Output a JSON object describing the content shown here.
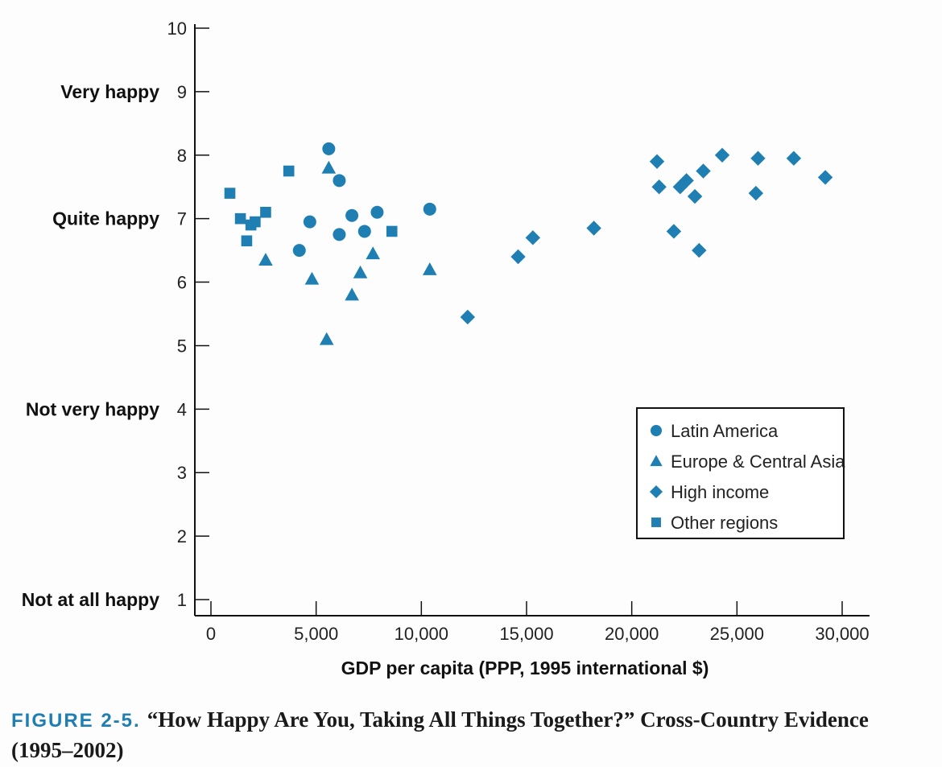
{
  "caption": {
    "label": "FIGURE 2-5.",
    "text": "“How Happy Are You, Taking All Things Together?” Cross-Country Evidence (1995–2002)"
  },
  "colors": {
    "marker": "#1f7fb3",
    "axis": "#111111"
  },
  "chart_data": {
    "type": "scatter",
    "title": "",
    "xlabel": "GDP per capita (PPP, 1995 international $)",
    "ylabel": "",
    "xlim": [
      0,
      31000
    ],
    "ylim": [
      1,
      10
    ],
    "x_ticks": [
      0,
      5000,
      10000,
      15000,
      20000,
      25000,
      30000
    ],
    "x_tick_labels": [
      "0",
      "5,000",
      "10,000",
      "15,000",
      "20,000",
      "25,000",
      "30,000"
    ],
    "y_ticks": [
      1,
      2,
      3,
      4,
      5,
      6,
      7,
      8,
      9,
      10
    ],
    "y_tick_labels": [
      "1",
      "2",
      "3",
      "4",
      "5",
      "6",
      "7",
      "8",
      "9",
      "10"
    ],
    "y_category_labels": [
      {
        "y": 9,
        "label": "Very happy"
      },
      {
        "y": 7,
        "label": "Quite happy"
      },
      {
        "y": 4,
        "label": "Not very happy"
      },
      {
        "y": 1,
        "label": "Not at all happy"
      }
    ],
    "legend_position": "lower-right",
    "grid": false,
    "series": [
      {
        "name": "Latin America",
        "marker": "circle",
        "points": [
          {
            "x": 5600,
            "y": 8.1
          },
          {
            "x": 6100,
            "y": 7.6
          },
          {
            "x": 4700,
            "y": 6.95
          },
          {
            "x": 4200,
            "y": 6.5
          },
          {
            "x": 6100,
            "y": 6.75
          },
          {
            "x": 6700,
            "y": 7.05
          },
          {
            "x": 7300,
            "y": 6.8
          },
          {
            "x": 7900,
            "y": 7.1
          },
          {
            "x": 10400,
            "y": 7.15
          }
        ]
      },
      {
        "name": "Europe & Central Asia",
        "marker": "triangle",
        "points": [
          {
            "x": 5600,
            "y": 7.8
          },
          {
            "x": 2600,
            "y": 6.35
          },
          {
            "x": 4800,
            "y": 6.05
          },
          {
            "x": 5500,
            "y": 5.1
          },
          {
            "x": 6700,
            "y": 5.8
          },
          {
            "x": 7100,
            "y": 6.15
          },
          {
            "x": 7700,
            "y": 6.45
          },
          {
            "x": 10400,
            "y": 6.2
          }
        ]
      },
      {
        "name": "High income",
        "marker": "diamond",
        "points": [
          {
            "x": 12200,
            "y": 5.45
          },
          {
            "x": 14600,
            "y": 6.4
          },
          {
            "x": 15300,
            "y": 6.7
          },
          {
            "x": 18200,
            "y": 6.85
          },
          {
            "x": 21200,
            "y": 7.9
          },
          {
            "x": 21300,
            "y": 7.5
          },
          {
            "x": 22000,
            "y": 6.8
          },
          {
            "x": 22300,
            "y": 7.5
          },
          {
            "x": 22600,
            "y": 7.6
          },
          {
            "x": 23000,
            "y": 7.35
          },
          {
            "x": 23200,
            "y": 6.5
          },
          {
            "x": 23400,
            "y": 7.75
          },
          {
            "x": 24300,
            "y": 8.0
          },
          {
            "x": 25900,
            "y": 7.4
          },
          {
            "x": 26000,
            "y": 7.95
          },
          {
            "x": 27700,
            "y": 7.95
          },
          {
            "x": 29200,
            "y": 7.65
          }
        ]
      },
      {
        "name": "Other regions",
        "marker": "square",
        "points": [
          {
            "x": 900,
            "y": 7.4
          },
          {
            "x": 1400,
            "y": 7.0
          },
          {
            "x": 1700,
            "y": 6.65
          },
          {
            "x": 1900,
            "y": 6.9
          },
          {
            "x": 2100,
            "y": 6.95
          },
          {
            "x": 2600,
            "y": 7.1
          },
          {
            "x": 3700,
            "y": 7.75
          },
          {
            "x": 8600,
            "y": 6.8
          }
        ]
      }
    ]
  }
}
